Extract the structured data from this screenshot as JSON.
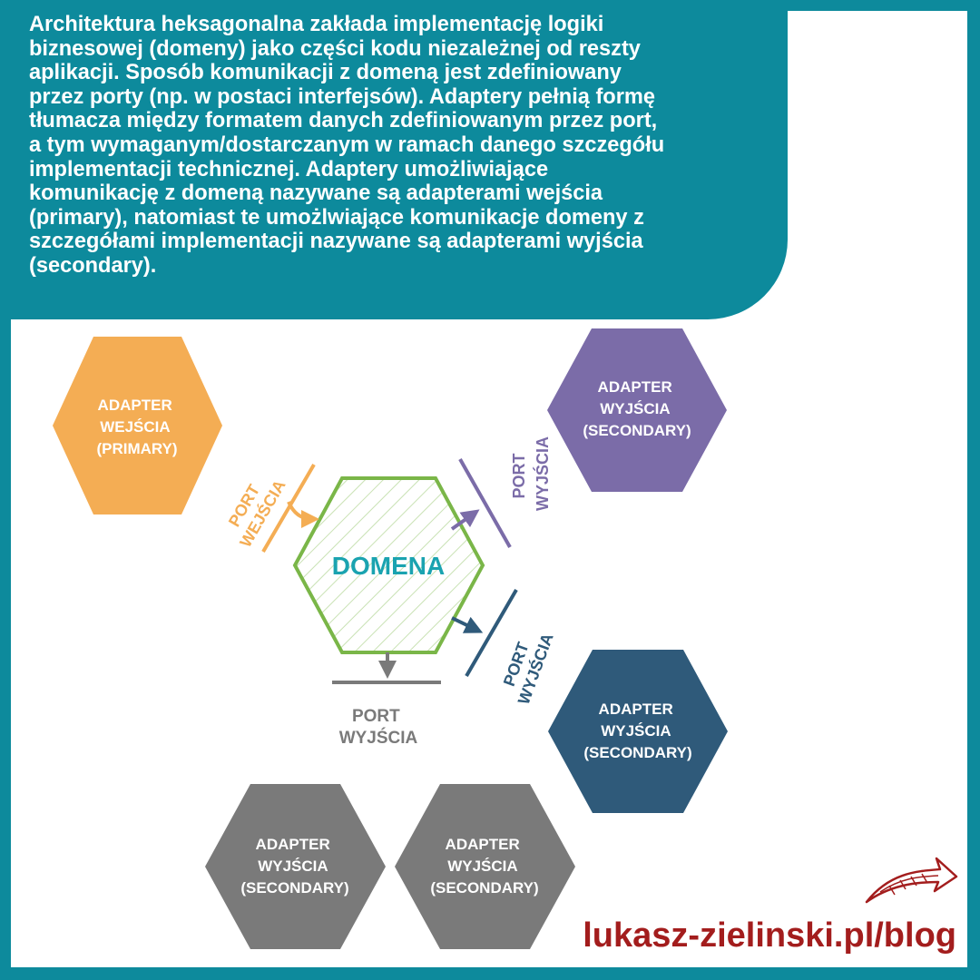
{
  "header": {
    "text": "Architektura heksagonalna zakłada implementację logiki\nbiznesowej (domeny) jako części kodu niezależnej od reszty\naplikacji. Sposób komunikacji z domeną jest zdefiniowany\nprzez porty (np. w postaci interfejsów). Adaptery pełnią formę\ntłumacza między formatem danych zdefiniowanym przez port,\na tym wymaganym/dostarczanym w ramach danego szczegółu\nimplementacji technicznej. Adaptery umożliwiające\nkomunikację z domeną nazywane są adapterami wejścia\n(primary), natomiast te umożlwiające komunikacje domeny z\nszczegółami implementacji nazywane są adapterami wyjścia\n(secondary)."
  },
  "diagram": {
    "domain": {
      "label": "DOMENA"
    },
    "adapters": [
      {
        "lines": [
          "ADAPTER",
          "WEJŚCIA",
          "(PRIMARY)"
        ],
        "color": "#f4ad54"
      },
      {
        "lines": [
          "ADAPTER",
          "WYJŚCIA",
          "(SECONDARY)"
        ],
        "color": "#7b6ca8"
      },
      {
        "lines": [
          "ADAPTER",
          "WYJŚCIA",
          "(SECONDARY)"
        ],
        "color": "#2f5a7a"
      },
      {
        "lines": [
          "ADAPTER",
          "WYJŚCIA",
          "(SECONDARY)"
        ],
        "color": "#7a7a7a"
      },
      {
        "lines": [
          "ADAPTER",
          "WYJŚCIA",
          "(SECONDARY)"
        ],
        "color": "#7a7a7a"
      }
    ],
    "ports": [
      {
        "lines": [
          "PORT",
          "WEJŚCIA"
        ],
        "color": "#f4ad54"
      },
      {
        "lines": [
          "PORT",
          "WYJŚCIA"
        ],
        "color": "#7b6ca8"
      },
      {
        "lines": [
          "PORT",
          "WYJŚCIA"
        ],
        "color": "#2f5a7a"
      },
      {
        "lines": [
          "PORT",
          "WYJŚCIA"
        ],
        "color": "#7a7a7a"
      }
    ],
    "domain_color": "#7ab648",
    "domain_text_color": "#1aa3b0"
  },
  "footer": {
    "url": "lukasz-zielinski.pl/blog",
    "color": "#a31d1d"
  }
}
